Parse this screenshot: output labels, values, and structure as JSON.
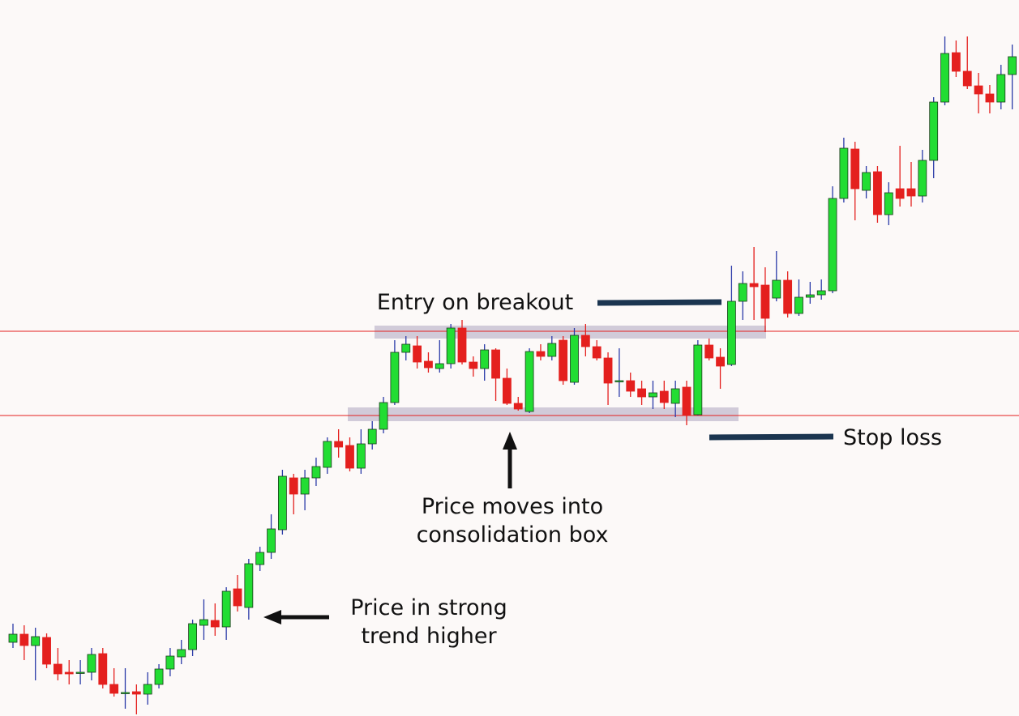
{
  "chart_data": {
    "type": "candlestick",
    "open": [
      91,
      101,
      87,
      97,
      64,
      54,
      53,
      54,
      77,
      39,
      28,
      30,
      27,
      39,
      58,
      73,
      82,
      112,
      118,
      110,
      157,
      134,
      187,
      202,
      230,
      294,
      274,
      294,
      307,
      339,
      334,
      306,
      336,
      354,
      387,
      449,
      457,
      438,
      429,
      435,
      479,
      437,
      429,
      452,
      417,
      386,
      376,
      450,
      444,
      464,
      412,
      470,
      456,
      442,
      413,
      414,
      404,
      394,
      401,
      386,
      406,
      372,
      458,
      443,
      434,
      512,
      534,
      532,
      516,
      538,
      497,
      517,
      520,
      525,
      639,
      700,
      649,
      672,
      619,
      651,
      651,
      642,
      686,
      758,
      819,
      796,
      778,
      768,
      758,
      792
    ],
    "high": [
      114,
      112,
      109,
      102,
      84,
      69,
      69,
      84,
      84,
      59,
      59,
      39,
      54,
      64,
      84,
      94,
      119,
      144,
      139,
      159,
      174,
      194,
      209,
      249,
      304,
      299,
      304,
      319,
      344,
      354,
      344,
      354,
      364,
      394,
      464,
      469,
      469,
      449,
      464,
      484,
      489,
      444,
      459,
      454,
      429,
      394,
      454,
      459,
      469,
      469,
      479,
      484,
      464,
      449,
      454,
      424,
      414,
      414,
      414,
      414,
      414,
      464,
      466,
      454,
      556,
      549,
      579,
      554,
      574,
      549,
      539,
      536,
      539,
      654,
      714,
      709,
      679,
      679,
      659,
      704,
      684,
      699,
      764,
      839,
      834,
      839,
      794,
      779,
      804,
      829
    ],
    "low": [
      84,
      69,
      44,
      59,
      44,
      39,
      39,
      44,
      34,
      24,
      9,
      2,
      14,
      34,
      49,
      64,
      74,
      94,
      99,
      94,
      129,
      119,
      179,
      194,
      224,
      249,
      254,
      284,
      299,
      319,
      302,
      299,
      329,
      349,
      384,
      439,
      429,
      424,
      424,
      429,
      434,
      419,
      414,
      389,
      384,
      377,
      374,
      439,
      439,
      409,
      409,
      444,
      439,
      384,
      394,
      394,
      384,
      379,
      379,
      369,
      359,
      371,
      439,
      404,
      432,
      489,
      489,
      474,
      512,
      492,
      494,
      509,
      514,
      522,
      634,
      612,
      639,
      609,
      606,
      629,
      629,
      634,
      664,
      754,
      789,
      774,
      744,
      744,
      749,
      749
    ],
    "close": [
      101,
      87,
      98,
      64,
      52,
      52,
      54,
      76,
      39,
      28,
      29,
      27,
      39,
      58,
      74,
      82,
      114,
      119,
      110,
      154,
      136,
      188,
      202,
      231,
      296,
      274,
      294,
      308,
      339,
      332,
      306,
      336,
      354,
      387,
      449,
      459,
      437,
      430,
      435,
      479,
      437,
      429,
      452,
      417,
      386,
      379,
      450,
      444,
      460,
      414,
      470,
      456,
      442,
      411,
      414,
      401,
      394,
      399,
      387,
      404,
      371,
      458,
      442,
      432,
      512,
      534,
      530,
      491,
      538,
      497,
      517,
      520,
      525,
      639,
      701,
      651,
      671,
      619,
      646,
      639,
      642,
      686,
      758,
      818,
      796,
      778,
      768,
      758,
      792,
      814
    ],
    "ylim": [
      0,
      884
    ],
    "up_color": "#22dd33",
    "down_color": "#e4201e",
    "up_wick_color": "#2a3aa8",
    "down_wick_color": "#e4201e",
    "resistance": 475,
    "support": 371,
    "level_color": "#e4201e",
    "box_color": "#c9c3d3",
    "annotations": [
      {
        "lines": [
          "Entry on breakout"
        ]
      },
      {
        "lines": [
          "Stop loss"
        ]
      },
      {
        "lines": [
          "Price moves into",
          "consolidation box"
        ]
      },
      {
        "lines": [
          "Price in strong",
          "trend higher"
        ]
      }
    ]
  }
}
